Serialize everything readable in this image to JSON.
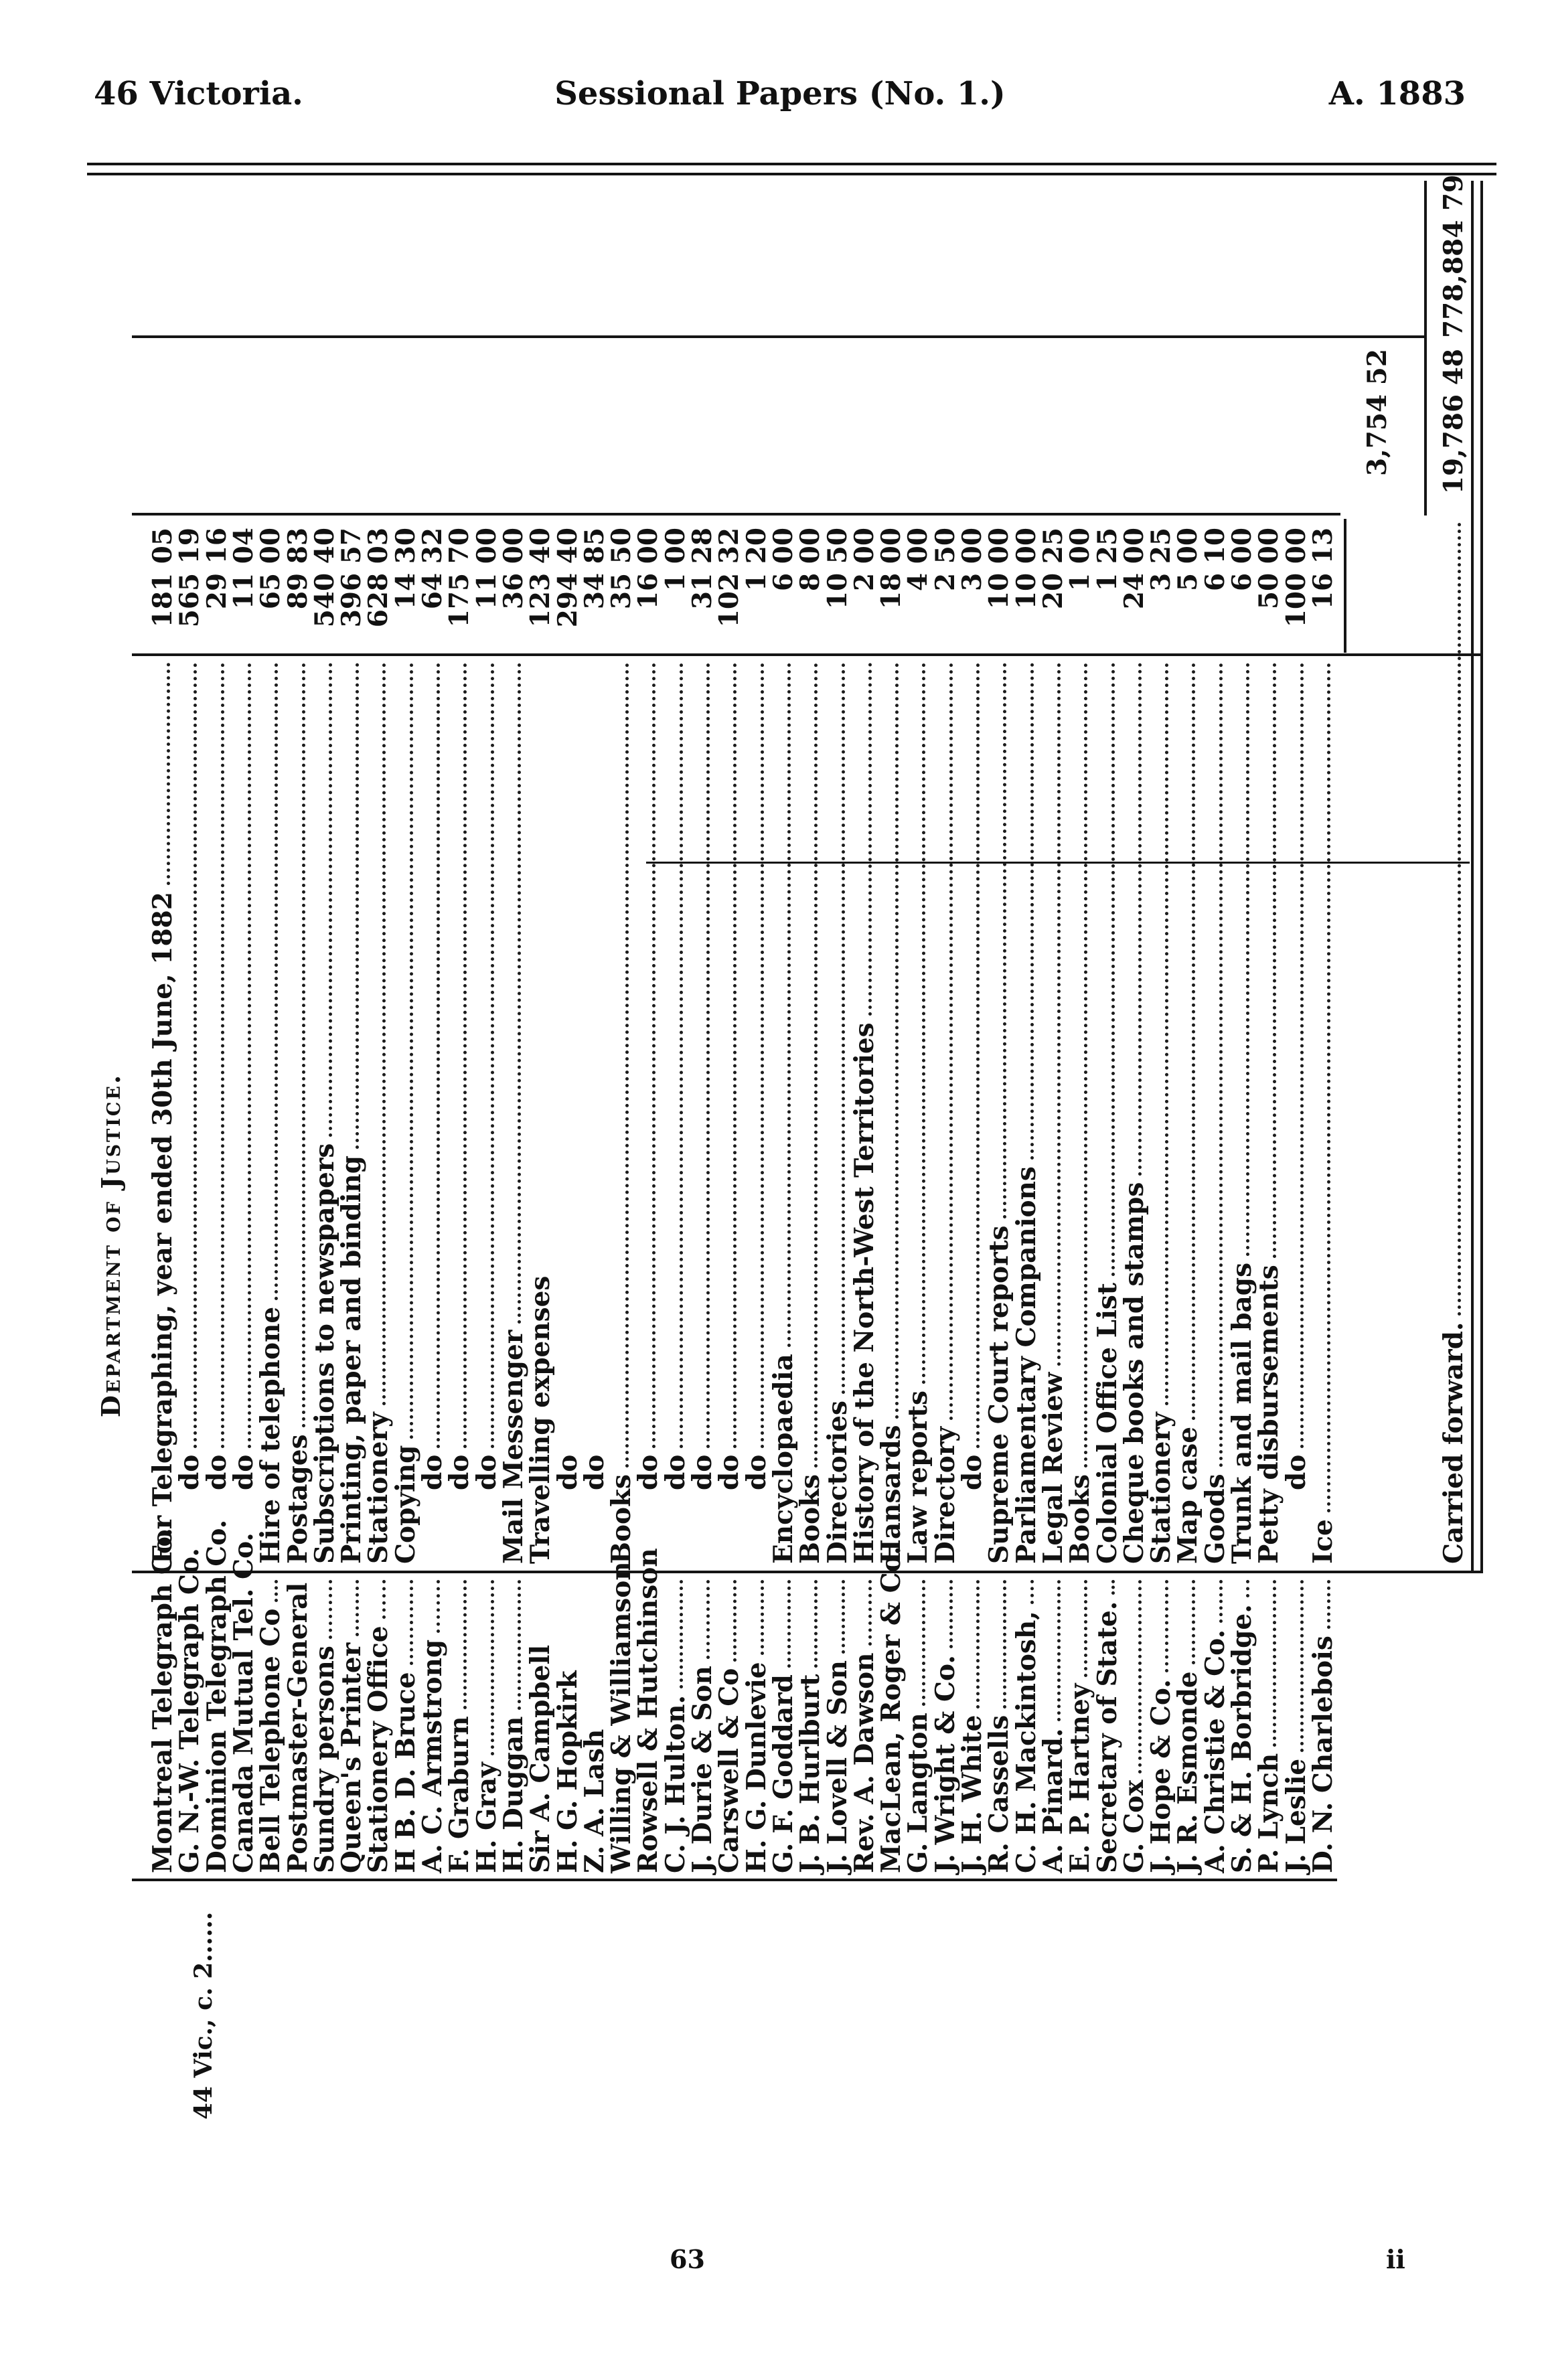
{
  "page_header": {
    "left": "46 Victoria.",
    "center": "Sessional Papers (No. 1.)",
    "right": "A. 1883"
  },
  "dept_heading": "Department of Justice.",
  "marginal_note": "44 Vic., c. 2......",
  "ledger": {
    "rows": [
      {
        "payee": "Montreal Telegraph Co.",
        "service": "For Telegraphing, year ended 30th June, 1882",
        "amount": "181 05",
        "indent": 0,
        "leader": true
      },
      {
        "payee": "G. N.-W. Telegraph Co.",
        "service": "do",
        "amount": "565 19",
        "indent": 1,
        "leader": true
      },
      {
        "payee": "Dominion Telegraph Co.",
        "service": "do",
        "amount": "29 16",
        "indent": 1,
        "leader": true
      },
      {
        "payee": "Canada Mutual Tel. Co.",
        "service": "do",
        "amount": "11 04",
        "indent": 1,
        "leader": true
      },
      {
        "payee": "Bell Telephone Co",
        "service": "Hire of telephone",
        "amount": "65 00",
        "indent": 0,
        "leader": true
      },
      {
        "payee": "Postmaster-General",
        "service": "Postages",
        "amount": "89 83",
        "indent": 0,
        "leader": true
      },
      {
        "payee": "Sundry persons",
        "service": "Subscriptions to newspapers",
        "amount": "540 40",
        "indent": 0,
        "leader": true
      },
      {
        "payee": "Queen's Printer",
        "service": "Printing, paper and binding",
        "amount": "396 57",
        "indent": 0,
        "leader": true
      },
      {
        "payee": "Stationery Office",
        "service": "Stationery",
        "amount": "628 03",
        "indent": 0,
        "leader": true
      },
      {
        "payee": "H B. D. Bruce",
        "service": "Copying",
        "amount": "14 30",
        "indent": 0,
        "leader": true
      },
      {
        "payee": "A. C. Armstrong",
        "service": "do",
        "amount": "64 32",
        "indent": 1,
        "leader": true
      },
      {
        "payee": "F. Graburn",
        "service": "do",
        "amount": "175 70",
        "indent": 1,
        "leader": true
      },
      {
        "payee": "H. Gray",
        "service": "do",
        "amount": "11 00",
        "indent": 1,
        "leader": true
      },
      {
        "payee": "H. Duggan",
        "service": "Mail Messenger",
        "amount": "36 00",
        "indent": 0,
        "leader": true
      },
      {
        "payee": "Sir A. Campbell",
        "service": "Travelling expenses",
        "amount": "123 40",
        "indent": 0,
        "leader": false
      },
      {
        "payee": "H. G. Hopkirk",
        "service": "do",
        "amount": "294 40",
        "indent": 1,
        "leader": false
      },
      {
        "payee": "Z. A. Lash",
        "service": "do",
        "amount": "34 85",
        "indent": 1,
        "leader": false
      },
      {
        "payee": "Willing & Williamson",
        "service": "Books",
        "amount": "35 50",
        "indent": 0,
        "leader": true
      },
      {
        "payee": "Rowsell & Hutchinson",
        "service": "do",
        "amount": "16 00",
        "indent": 1,
        "leader": true
      },
      {
        "payee": "C. J. Hulton.",
        "service": "do",
        "amount": "1 00",
        "indent": 1,
        "leader": true
      },
      {
        "payee": "J. Durie & Son",
        "service": "do",
        "amount": "31 28",
        "indent": 1,
        "leader": true
      },
      {
        "payee": "Carswell & Co",
        "service": "do",
        "amount": "102 32",
        "indent": 1,
        "leader": true
      },
      {
        "payee": "H. G. Dunlevie",
        "service": "do",
        "amount": "1 20",
        "indent": 1,
        "leader": true
      },
      {
        "payee": "G. F. Goddard",
        "service": "Encyclopaedia",
        "amount": "6 00",
        "indent": 0,
        "leader": true
      },
      {
        "payee": "J. B. Hurlburt",
        "service": "Books",
        "amount": "8 00",
        "indent": 0,
        "leader": true
      },
      {
        "payee": "J. Lovell & Son",
        "service": "Directories",
        "amount": "10 50",
        "indent": 0,
        "leader": true
      },
      {
        "payee": "Rev. A. Dawson",
        "service": "History of the North-West Territories",
        "amount": "2 00",
        "indent": 0,
        "leader": true
      },
      {
        "payee": "MacLean, Roger & Co.",
        "service": "Hansards",
        "amount": "18 00",
        "indent": 0,
        "leader": true
      },
      {
        "payee": "G. Langton",
        "service": "Law reports",
        "amount": "4 00",
        "indent": 0,
        "leader": true
      },
      {
        "payee": "J. Wright & Co.",
        "service": "Directory",
        "amount": "2 50",
        "indent": 0,
        "leader": true
      },
      {
        "payee": "J. H. White",
        "service": "do",
        "amount": "3 00",
        "indent": 1,
        "leader": true
      },
      {
        "payee": "R. Cassells",
        "service": "Supreme Court reports",
        "amount": "10 00",
        "indent": 0,
        "leader": true
      },
      {
        "payee": "C. H. Mackintosh,",
        "service": "Parliamentary Companions",
        "amount": "10 00",
        "indent": 0,
        "leader": true
      },
      {
        "payee": "A. Pinard.",
        "service": "Legal Review",
        "amount": "20 25",
        "indent": 0,
        "leader": true
      },
      {
        "payee": "E. P. Hartney",
        "service": "Books",
        "amount": "1 00",
        "indent": 0,
        "leader": true
      },
      {
        "payee": "Secretary of State.",
        "service": "Colonial Office List",
        "amount": "1 25",
        "indent": 0,
        "leader": true
      },
      {
        "payee": "G. Cox",
        "service": "Cheque books and stamps",
        "amount": "24 00",
        "indent": 0,
        "leader": true
      },
      {
        "payee": "J. Hope & Co.",
        "service": "Stationery",
        "amount": "3 25",
        "indent": 0,
        "leader": true
      },
      {
        "payee": "J. R. Esmonde",
        "service": "Map case",
        "amount": "5 00",
        "indent": 0,
        "leader": true
      },
      {
        "payee": "A. Christie & Co.",
        "service": "Goods",
        "amount": "6 10",
        "indent": 0,
        "leader": true
      },
      {
        "payee": "S. & H. Borbridge.",
        "service": "Trunk and mail bags",
        "amount": "6 00",
        "indent": 0,
        "leader": true
      },
      {
        "payee": "P. Lynch",
        "service": "Petty disbursements",
        "amount": "50 00",
        "indent": 0,
        "leader": true
      },
      {
        "payee": "J. Leslie",
        "service": "do",
        "amount": "100 00",
        "indent": 1,
        "leader": true
      },
      {
        "payee": "D. N. Charlebois",
        "service": "Ice",
        "amount": "16 13",
        "indent": 0,
        "leader": true
      }
    ],
    "subtotal": "3,754 52",
    "carried_forward": {
      "label": "Carried forward.",
      "subtotal": "19,786 48",
      "total": "778,884 79"
    }
  },
  "page_footer": {
    "page_number": "63",
    "folio": "ii"
  }
}
